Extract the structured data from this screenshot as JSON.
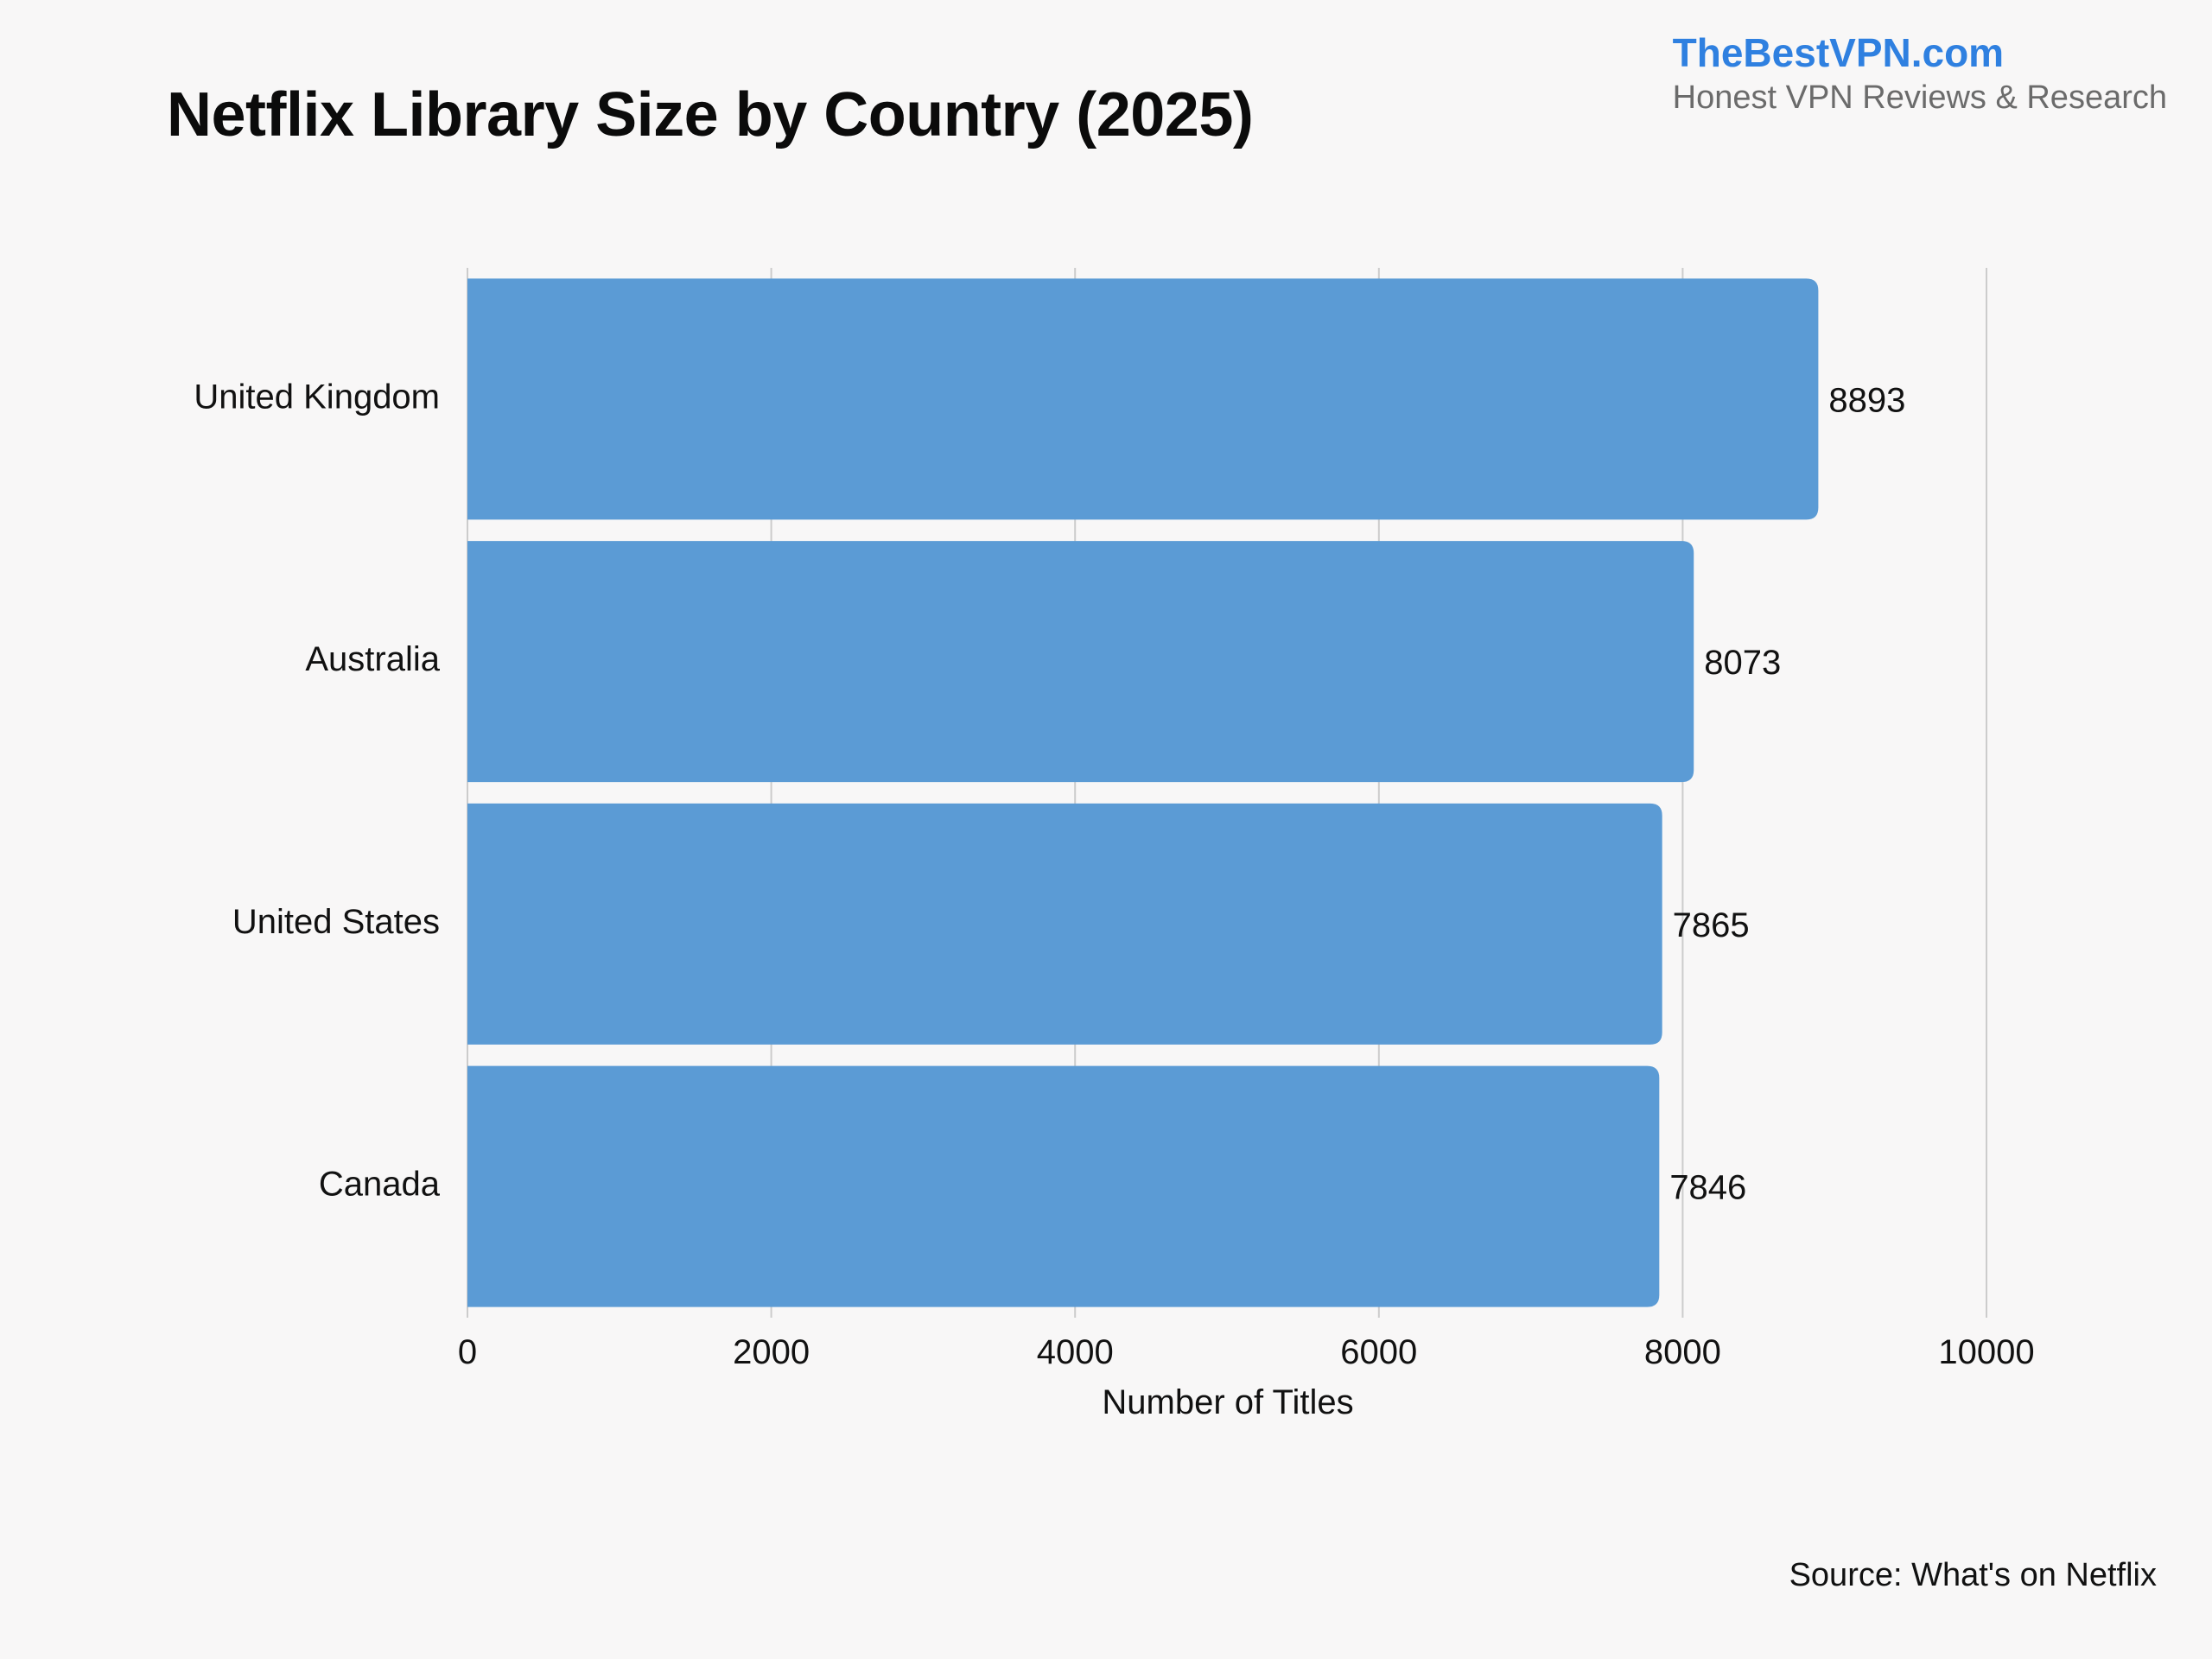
{
  "brand": {
    "name": "TheBestVPN.com",
    "tagline": "Honest VPN Reviews & Research"
  },
  "source": "Source: What's on Netflix",
  "chart_data": {
    "type": "bar",
    "orientation": "horizontal",
    "title": "Netflix Library Size by Country (2025)",
    "xlabel": "Number of Titles",
    "ylabel": "",
    "categories": [
      "United Kingdom",
      "Australia",
      "United States",
      "Canada"
    ],
    "values": [
      8893,
      8073,
      7865,
      7846
    ],
    "xlim": [
      0,
      10000
    ],
    "xticks": [
      "0",
      "2000",
      "4000",
      "6000",
      "8000",
      "10000"
    ],
    "grid": true,
    "legend": "none",
    "bar_color": "#5b9bd5",
    "grid_color": "#cccccc"
  }
}
